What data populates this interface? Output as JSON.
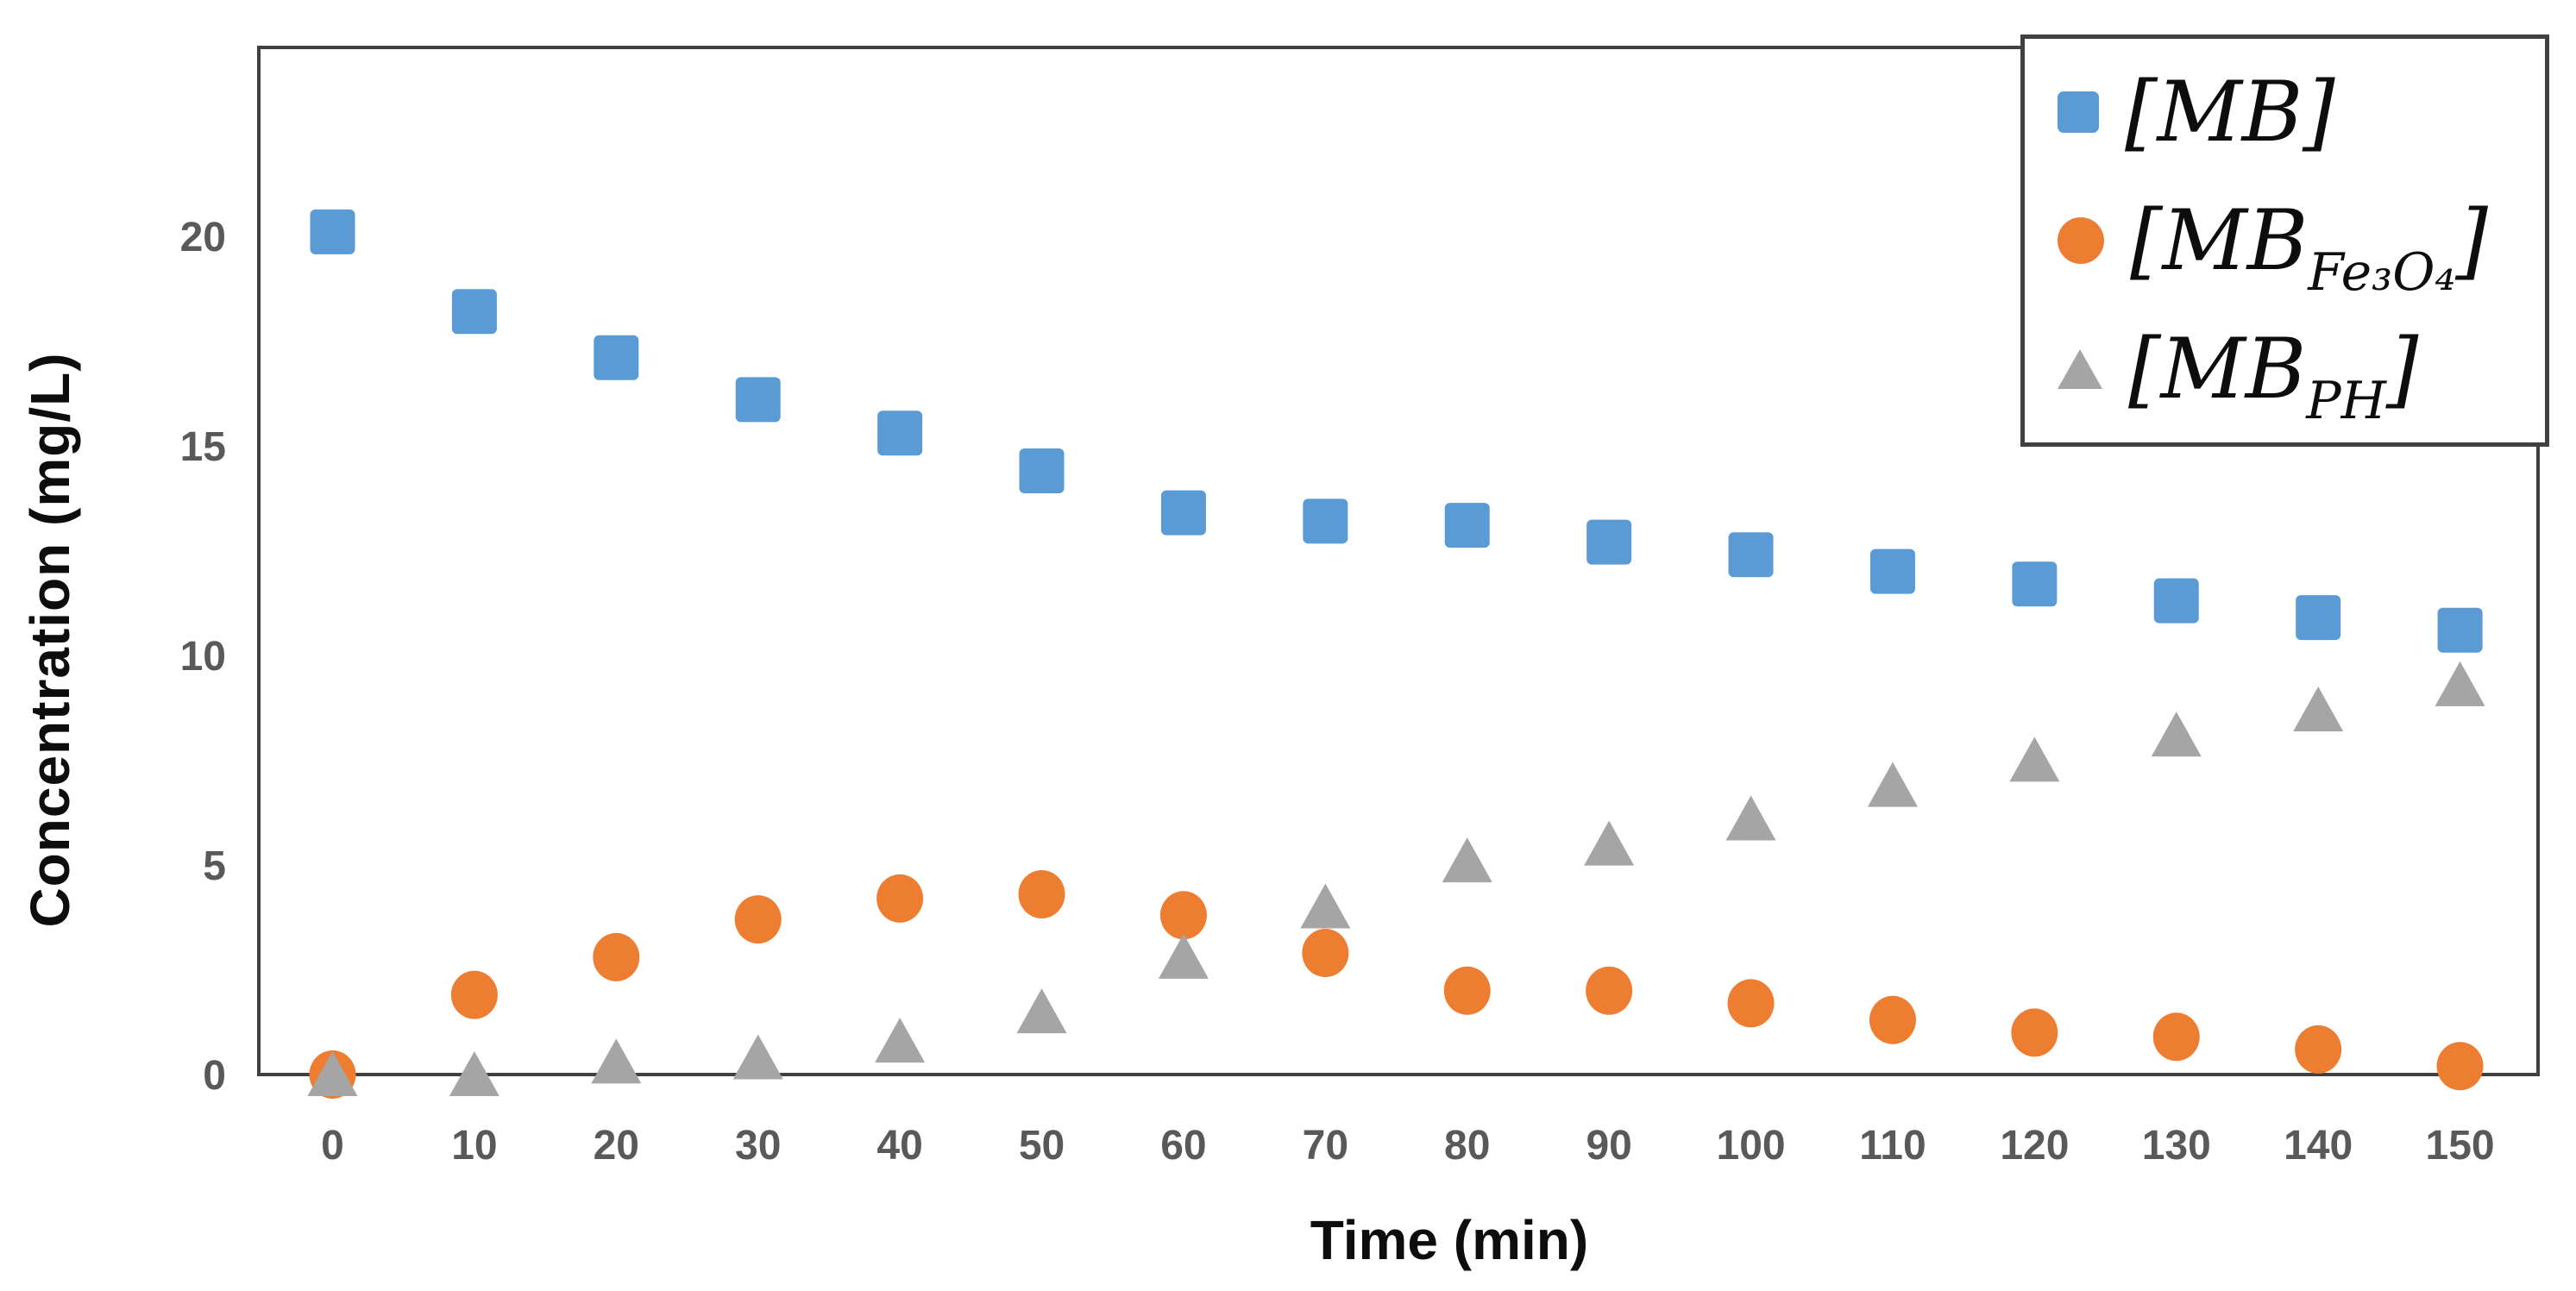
{
  "page": {
    "background": "#ffffff"
  },
  "colors": {
    "blue": "#5B9BD5",
    "orange": "#ED7D31",
    "gray": "#A5A5A5",
    "tick_text": "#595959",
    "axis_title_text": "#0d0d0d",
    "frame": "#404040"
  },
  "chart_data": {
    "type": "scatter",
    "title": "",
    "xlabel": "Time (min)",
    "ylabel": "Concentration (mg/L)",
    "x": [
      0,
      10,
      20,
      30,
      40,
      50,
      60,
      70,
      80,
      90,
      100,
      110,
      120,
      130,
      140,
      150
    ],
    "x_ticks": [
      0,
      10,
      20,
      30,
      40,
      50,
      60,
      70,
      80,
      90,
      100,
      110,
      120,
      130,
      140,
      150
    ],
    "y_ticks": [
      0,
      5,
      10,
      15,
      20
    ],
    "xlim": [
      -5.2,
      155.5
    ],
    "ylim": [
      0,
      24.5
    ],
    "grid": false,
    "legend_position": "top-right",
    "series": [
      {
        "id": "mb",
        "name": "[MB]",
        "marker": "square",
        "color": "#5B9BD5",
        "values": [
          20.1,
          18.2,
          17.1,
          16.1,
          15.3,
          14.4,
          13.4,
          13.2,
          13.1,
          12.7,
          12.4,
          12.0,
          11.7,
          11.3,
          10.9,
          10.6
        ]
      },
      {
        "id": "mb-fe3o4",
        "name": "[MB_Fe3O4]",
        "marker": "circle",
        "color": "#ED7D31",
        "values": [
          0.0,
          1.9,
          2.8,
          3.7,
          4.2,
          4.3,
          3.8,
          2.9,
          2.0,
          2.0,
          1.7,
          1.3,
          1.0,
          0.9,
          0.6,
          0.2
        ]
      },
      {
        "id": "mb-ph",
        "name": "[MB_PH]",
        "marker": "triangle",
        "color": "#A5A5A5",
        "values": [
          0.0,
          0.0,
          0.3,
          0.4,
          0.8,
          1.5,
          2.8,
          4.0,
          5.1,
          5.5,
          6.1,
          6.9,
          7.5,
          8.1,
          8.7,
          9.3
        ]
      }
    ]
  },
  "legend": {
    "items": [
      {
        "pre": "[MB",
        "sub": "",
        "post": "]",
        "series_id": "mb"
      },
      {
        "pre": "[MB",
        "sub": "Fe₃O₄",
        "post": "]",
        "series_id": "mb-fe3o4"
      },
      {
        "pre": "[MB",
        "sub": "PH",
        "post": "]",
        "series_id": "mb-ph"
      }
    ]
  }
}
